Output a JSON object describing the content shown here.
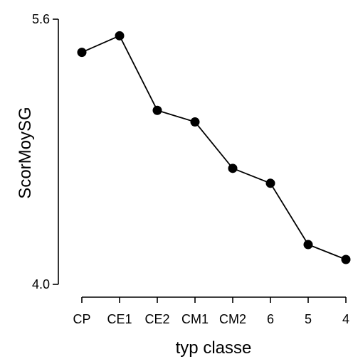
{
  "chart_data": {
    "type": "line",
    "categories": [
      "CP",
      "CE1",
      "CE2",
      "CM1",
      "CM2",
      "6",
      "5",
      "4"
    ],
    "values": [
      5.4,
      5.5,
      5.05,
      4.98,
      4.7,
      4.61,
      4.24,
      4.15
    ],
    "xlabel": "typ classe",
    "ylabel": "ScorMoySG",
    "ylim": [
      4.0,
      5.6
    ],
    "yticks": [
      "4.0",
      "5.6"
    ],
    "grid": false,
    "legend": "none",
    "colors": {
      "line": "#000000",
      "point": "#000000"
    }
  }
}
